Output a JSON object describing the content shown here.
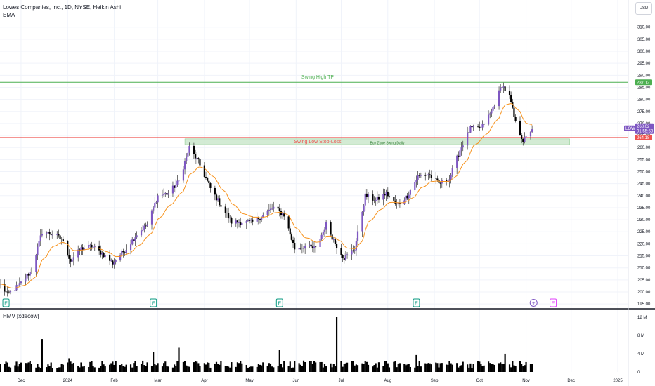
{
  "legend": {
    "title": "Lowes Companies, Inc., 1D, NYSE, Heikin Ashi",
    "ema": "EMA"
  },
  "volume_title": "HMV [xdecow]",
  "currency_button": "USD",
  "colors": {
    "up": "#7e57c2",
    "down": "#000000",
    "ema": "#f7931e",
    "tp_line": "#4caf50",
    "sl_line": "#ef5350",
    "buy_zone": "#c8e6c9",
    "ticker_badge": "#7e57c2",
    "earnings_badge": "#089981",
    "future_earnings_badge": "#e040fb"
  },
  "annotations": {
    "tp_label": "Swing High TP",
    "sl_label": "Swing Low Stop-Loss",
    "zone_label": "Buy Zone Swing Daily",
    "tp_price": "287.12",
    "sl_price": "264.18",
    "ticker": "LOW",
    "last_price": "268.02",
    "countdown": "01:55:53",
    "earnings_marker": "E",
    "plus_marker": "+"
  },
  "chart_data": {
    "type": "candlestick",
    "series_name": "Lowes Companies, Inc., 1D, NYSE, Heikin Ashi",
    "price_axis": {
      "ticks": [
        195,
        200,
        205,
        210,
        215,
        220,
        225,
        230,
        235,
        240,
        245,
        250,
        255,
        260,
        265,
        270,
        275,
        280,
        285,
        290,
        295,
        300,
        305,
        310
      ],
      "tick_labels": [
        "195.00",
        "200.00",
        "205.00",
        "210.00",
        "215.00",
        "220.00",
        "225.00",
        "230.00",
        "235.00",
        "240.00",
        "245.00",
        "250.00",
        "255.00",
        "260.00",
        "265.00",
        "270.00",
        "275.00",
        "280.00",
        "285.00",
        "290.00",
        "295.00",
        "300.00",
        "305.00",
        "310.00"
      ],
      "range": [
        193,
        314
      ]
    },
    "time_axis": {
      "labels": [
        "Dec",
        "2024",
        "Feb",
        "Mar",
        "Apr",
        "May",
        "Jun",
        "Jul",
        "Aug",
        "Sep",
        "Oct",
        "Nov",
        "Dec",
        "2025"
      ],
      "range": [
        "2023-11-17",
        "2025-01-08"
      ]
    },
    "volume_axis": {
      "ticks": [
        0,
        4,
        8,
        12
      ],
      "tick_labels": [
        "0",
        "4 M",
        "8 M",
        "12 M"
      ],
      "unit": "M",
      "range": [
        0,
        13.2
      ]
    },
    "levels": {
      "swing_high_tp": 287.12,
      "swing_low_stop_loss": 264.18,
      "buy_zone": [
        261.2,
        263.6
      ],
      "last": 268.02
    },
    "earnings_dates": [
      "2023-11-21",
      "2024-02-27",
      "2024-05-21",
      "2024-08-20",
      "2024-11-19"
    ],
    "volume_spikes": [
      {
        "date": "2023-12-15",
        "value": 7.2
      },
      {
        "date": "2024-01-02",
        "value": 3.0
      },
      {
        "date": "2024-02-27",
        "value": 4.4
      },
      {
        "date": "2024-03-15",
        "value": 5.3
      },
      {
        "date": "2024-05-21",
        "value": 4.9
      },
      {
        "date": "2024-06-28",
        "value": 12.1
      },
      {
        "date": "2024-08-20",
        "value": 3.7
      },
      {
        "date": "2024-10-18",
        "value": 4.0
      }
    ],
    "price_path": [
      {
        "date": "2023-11-17",
        "value": 203
      },
      {
        "date": "2023-11-22",
        "value": 199
      },
      {
        "date": "2023-11-30",
        "value": 203
      },
      {
        "date": "2023-12-08",
        "value": 209
      },
      {
        "date": "2023-12-15",
        "value": 225
      },
      {
        "date": "2023-12-22",
        "value": 224
      },
      {
        "date": "2023-12-28",
        "value": 222
      },
      {
        "date": "2024-01-03",
        "value": 213
      },
      {
        "date": "2024-01-10",
        "value": 218
      },
      {
        "date": "2024-01-17",
        "value": 219
      },
      {
        "date": "2024-01-24",
        "value": 216
      },
      {
        "date": "2024-01-31",
        "value": 212
      },
      {
        "date": "2024-02-09",
        "value": 218
      },
      {
        "date": "2024-02-16",
        "value": 224
      },
      {
        "date": "2024-02-23",
        "value": 228
      },
      {
        "date": "2024-03-01",
        "value": 240
      },
      {
        "date": "2024-03-08",
        "value": 241
      },
      {
        "date": "2024-03-15",
        "value": 246
      },
      {
        "date": "2024-03-22",
        "value": 260
      },
      {
        "date": "2024-03-28",
        "value": 254
      },
      {
        "date": "2024-04-05",
        "value": 243
      },
      {
        "date": "2024-04-12",
        "value": 236
      },
      {
        "date": "2024-04-19",
        "value": 229
      },
      {
        "date": "2024-04-26",
        "value": 229
      },
      {
        "date": "2024-05-03",
        "value": 229
      },
      {
        "date": "2024-05-10",
        "value": 232
      },
      {
        "date": "2024-05-17",
        "value": 235
      },
      {
        "date": "2024-05-24",
        "value": 232
      },
      {
        "date": "2024-05-31",
        "value": 218
      },
      {
        "date": "2024-06-07",
        "value": 219
      },
      {
        "date": "2024-06-14",
        "value": 218
      },
      {
        "date": "2024-06-21",
        "value": 228
      },
      {
        "date": "2024-06-28",
        "value": 219
      },
      {
        "date": "2024-07-03",
        "value": 214
      },
      {
        "date": "2024-07-10",
        "value": 218
      },
      {
        "date": "2024-07-17",
        "value": 240
      },
      {
        "date": "2024-07-24",
        "value": 238
      },
      {
        "date": "2024-07-31",
        "value": 241
      },
      {
        "date": "2024-08-07",
        "value": 236
      },
      {
        "date": "2024-08-14",
        "value": 240
      },
      {
        "date": "2024-08-21",
        "value": 248
      },
      {
        "date": "2024-08-28",
        "value": 249
      },
      {
        "date": "2024-09-04",
        "value": 245
      },
      {
        "date": "2024-09-11",
        "value": 247
      },
      {
        "date": "2024-09-18",
        "value": 259
      },
      {
        "date": "2024-09-25",
        "value": 268
      },
      {
        "date": "2024-10-02",
        "value": 268
      },
      {
        "date": "2024-10-09",
        "value": 275
      },
      {
        "date": "2024-10-16",
        "value": 286
      },
      {
        "date": "2024-10-21",
        "value": 281
      },
      {
        "date": "2024-10-25",
        "value": 270
      },
      {
        "date": "2024-10-30",
        "value": 263
      },
      {
        "date": "2024-11-01",
        "value": 264
      },
      {
        "date": "2024-11-05",
        "value": 268
      }
    ]
  }
}
